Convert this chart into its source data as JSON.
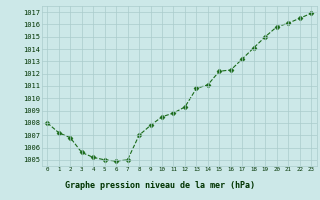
{
  "x": [
    0,
    1,
    2,
    3,
    4,
    5,
    6,
    7,
    8,
    9,
    10,
    11,
    12,
    13,
    14,
    15,
    16,
    17,
    18,
    19,
    20,
    21,
    22,
    23
  ],
  "y": [
    1008.0,
    1007.2,
    1006.8,
    1005.6,
    1005.2,
    1005.0,
    1004.9,
    1005.0,
    1007.0,
    1007.8,
    1008.5,
    1008.8,
    1009.3,
    1010.8,
    1011.1,
    1012.2,
    1012.3,
    1013.2,
    1014.1,
    1015.0,
    1015.8,
    1016.1,
    1016.5,
    1016.9
  ],
  "ylim": [
    1004.5,
    1017.5
  ],
  "yticks": [
    1005,
    1006,
    1007,
    1008,
    1009,
    1010,
    1011,
    1012,
    1013,
    1014,
    1015,
    1016,
    1017
  ],
  "xticks": [
    0,
    1,
    2,
    3,
    4,
    5,
    6,
    7,
    8,
    9,
    10,
    11,
    12,
    13,
    14,
    15,
    16,
    17,
    18,
    19,
    20,
    21,
    22,
    23
  ],
  "line_color": "#1a6b1a",
  "marker_color": "#1a6b1a",
  "bg_color": "#cce8e8",
  "grid_color": "#aacccc",
  "xlabel": "Graphe pression niveau de la mer (hPa)",
  "tick_label_color": "#003300",
  "bottom_bar_color": "#44bb44",
  "bottom_text_color": "#003300"
}
